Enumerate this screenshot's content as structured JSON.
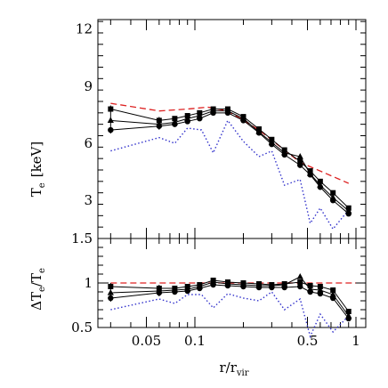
{
  "chart_data": [
    {
      "type": "line",
      "panel": "top",
      "xscale": "log",
      "xlim": [
        0.025,
        1.15
      ],
      "ylim": [
        1,
        12.5
      ],
      "yticks": [
        3,
        6,
        9,
        12
      ],
      "ytick_labels": [
        "3",
        "6",
        "9",
        "12"
      ],
      "ylabel": "T",
      "ylabel_sub": "e",
      "ylabel_unit": "[keV]",
      "series": [
        {
          "style": "dashed",
          "color": "#dd2222",
          "x": [
            0.03,
            0.06,
            0.09,
            0.12,
            0.16,
            0.25,
            0.45,
            0.9
          ],
          "y": [
            8.1,
            7.7,
            7.8,
            7.9,
            7.7,
            6.7,
            5.0,
            3.9
          ]
        },
        {
          "style": "dotted",
          "color": "#3333cc",
          "x": [
            0.03,
            0.06,
            0.075,
            0.09,
            0.11,
            0.13,
            0.16,
            0.2,
            0.25,
            0.3,
            0.36,
            0.45,
            0.52,
            0.6,
            0.72,
            0.9
          ],
          "y": [
            5.6,
            6.3,
            6.0,
            6.8,
            6.7,
            5.5,
            7.2,
            6.1,
            5.3,
            5.6,
            3.8,
            4.1,
            1.8,
            2.6,
            1.5,
            2.5
          ]
        },
        {
          "style": "solid-square",
          "color": "#000000",
          "x": [
            0.03,
            0.06,
            0.075,
            0.09,
            0.107,
            0.13,
            0.16,
            0.2,
            0.25,
            0.3,
            0.36,
            0.45,
            0.52,
            0.6,
            0.72,
            0.9
          ],
          "y": [
            7.8,
            7.2,
            7.3,
            7.45,
            7.6,
            7.8,
            7.8,
            7.4,
            6.75,
            6.2,
            5.65,
            5.05,
            4.55,
            4.0,
            3.4,
            2.6
          ]
        },
        {
          "style": "solid-triangle",
          "color": "#000000",
          "x": [
            0.03,
            0.06,
            0.075,
            0.09,
            0.107,
            0.13,
            0.16,
            0.2,
            0.25,
            0.3,
            0.36,
            0.45,
            0.52,
            0.6,
            0.72,
            0.9
          ],
          "y": [
            7.2,
            7.0,
            7.1,
            7.3,
            7.45,
            7.7,
            7.7,
            7.3,
            6.6,
            6.05,
            5.5,
            5.3,
            4.4,
            3.8,
            3.15,
            2.45
          ]
        },
        {
          "style": "solid-circle",
          "color": "#000000",
          "x": [
            0.03,
            0.06,
            0.075,
            0.09,
            0.107,
            0.13,
            0.16,
            0.2,
            0.25,
            0.3,
            0.36,
            0.45,
            0.52,
            0.6,
            0.72,
            0.9
          ],
          "y": [
            6.7,
            6.9,
            7.0,
            7.15,
            7.3,
            7.6,
            7.6,
            7.2,
            6.55,
            5.95,
            5.4,
            4.85,
            4.35,
            3.7,
            3.0,
            2.3
          ]
        }
      ]
    },
    {
      "type": "line",
      "panel": "bottom",
      "xscale": "log",
      "xlim": [
        0.025,
        1.15
      ],
      "ylim": [
        0.5,
        1.5
      ],
      "yticks": [
        0.5,
        1,
        1.5
      ],
      "ytick_labels": [
        "0.5",
        "1",
        "1.5"
      ],
      "xticks": [
        0.05,
        0.1,
        0.5,
        1
      ],
      "xtick_labels": [
        "0.05",
        "0.1",
        "0.5",
        "1"
      ],
      "ylabel": "ΔT",
      "ylabel_sub": "e",
      "ylabel_den": "/T",
      "ylabel_den_sub": "e",
      "xlabel": "r/r",
      "xlabel_sub": "vir",
      "series": [
        {
          "style": "dashed",
          "color": "#dd2222",
          "x": [
            0.03,
            1.0
          ],
          "y": [
            1.0,
            1.0
          ]
        },
        {
          "style": "dotted",
          "color": "#3333cc",
          "x": [
            0.03,
            0.06,
            0.075,
            0.09,
            0.11,
            0.13,
            0.16,
            0.2,
            0.25,
            0.3,
            0.36,
            0.45,
            0.52,
            0.6,
            0.72,
            0.9
          ],
          "y": [
            0.7,
            0.82,
            0.77,
            0.87,
            0.87,
            0.72,
            0.88,
            0.83,
            0.8,
            0.9,
            0.7,
            0.82,
            0.4,
            0.65,
            0.45,
            0.63
          ]
        },
        {
          "style": "solid-square",
          "color": "#000000",
          "x": [
            0.03,
            0.06,
            0.075,
            0.09,
            0.107,
            0.13,
            0.16,
            0.2,
            0.25,
            0.3,
            0.36,
            0.45,
            0.52,
            0.6,
            0.72,
            0.9
          ],
          "y": [
            0.96,
            0.94,
            0.94,
            0.96,
            0.98,
            1.03,
            1.01,
            1.0,
            0.99,
            0.98,
            0.99,
            1.01,
            0.97,
            0.96,
            0.92,
            0.68
          ]
        },
        {
          "style": "solid-triangle",
          "color": "#000000",
          "x": [
            0.03,
            0.06,
            0.075,
            0.09,
            0.107,
            0.13,
            0.16,
            0.2,
            0.25,
            0.3,
            0.36,
            0.45,
            0.52,
            0.6,
            0.72,
            0.9
          ],
          "y": [
            0.89,
            0.91,
            0.92,
            0.93,
            0.96,
            1.01,
            0.99,
            0.98,
            0.97,
            0.97,
            0.98,
            1.07,
            0.93,
            0.92,
            0.87,
            0.63
          ]
        },
        {
          "style": "solid-circle",
          "color": "#000000",
          "x": [
            0.03,
            0.06,
            0.075,
            0.09,
            0.107,
            0.13,
            0.16,
            0.2,
            0.25,
            0.3,
            0.36,
            0.45,
            0.52,
            0.6,
            0.72,
            0.9
          ],
          "y": [
            0.83,
            0.89,
            0.9,
            0.91,
            0.94,
            0.98,
            0.97,
            0.96,
            0.95,
            0.95,
            0.95,
            0.96,
            0.9,
            0.88,
            0.83,
            0.6
          ]
        }
      ]
    }
  ]
}
